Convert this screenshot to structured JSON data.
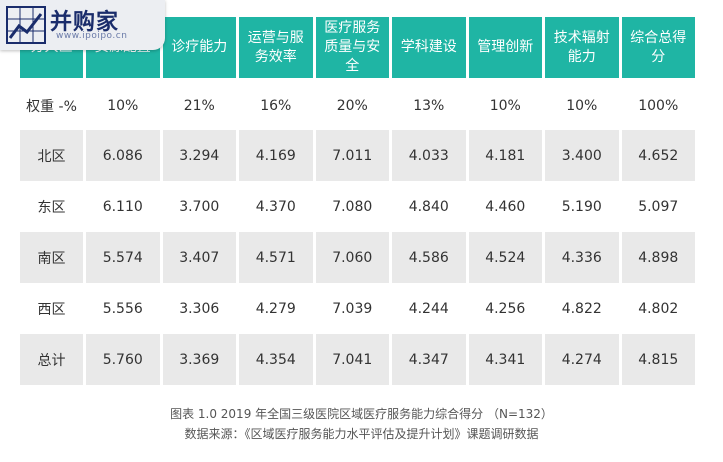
{
  "logo": {
    "name": "并购家",
    "url": "www.ipoipo.cn"
  },
  "table": {
    "headers": [
      "分大区",
      "资源配置",
      "诊疗能力",
      "运营与服务效率",
      "医疗服务质量与安全",
      "学科建设",
      "管理创新",
      "技术辐射能力",
      "综合总得分"
    ],
    "rows": [
      [
        "权重 -%",
        "10%",
        "21%",
        "16%",
        "20%",
        "13%",
        "10%",
        "10%",
        "100%"
      ],
      [
        "北区",
        "6.086",
        "3.294",
        "4.169",
        "7.011",
        "4.033",
        "4.181",
        "3.400",
        "4.652"
      ],
      [
        "东区",
        "6.110",
        "3.700",
        "4.370",
        "7.080",
        "4.840",
        "4.460",
        "5.190",
        "5.097"
      ],
      [
        "南区",
        "5.574",
        "3.407",
        "4.571",
        "7.060",
        "4.586",
        "4.524",
        "4.336",
        "4.898"
      ],
      [
        "西区",
        "5.556",
        "3.306",
        "4.279",
        "7.039",
        "4.244",
        "4.256",
        "4.822",
        "4.802"
      ],
      [
        "总计",
        "5.760",
        "3.369",
        "4.354",
        "7.041",
        "4.347",
        "4.341",
        "4.274",
        "4.815"
      ]
    ]
  },
  "caption": {
    "line1": "图表 1.0 2019 年全国三级医院区域医疗服务能力综合得分 （N=132）",
    "line2": "数据来源：《区域医疗服务能力水平评估及提升计划》课题调研数据"
  },
  "colors": {
    "header_bg": "#1fb5a4",
    "row_shade": "#e9e9e9",
    "logo_text": "#1a2c6b"
  }
}
